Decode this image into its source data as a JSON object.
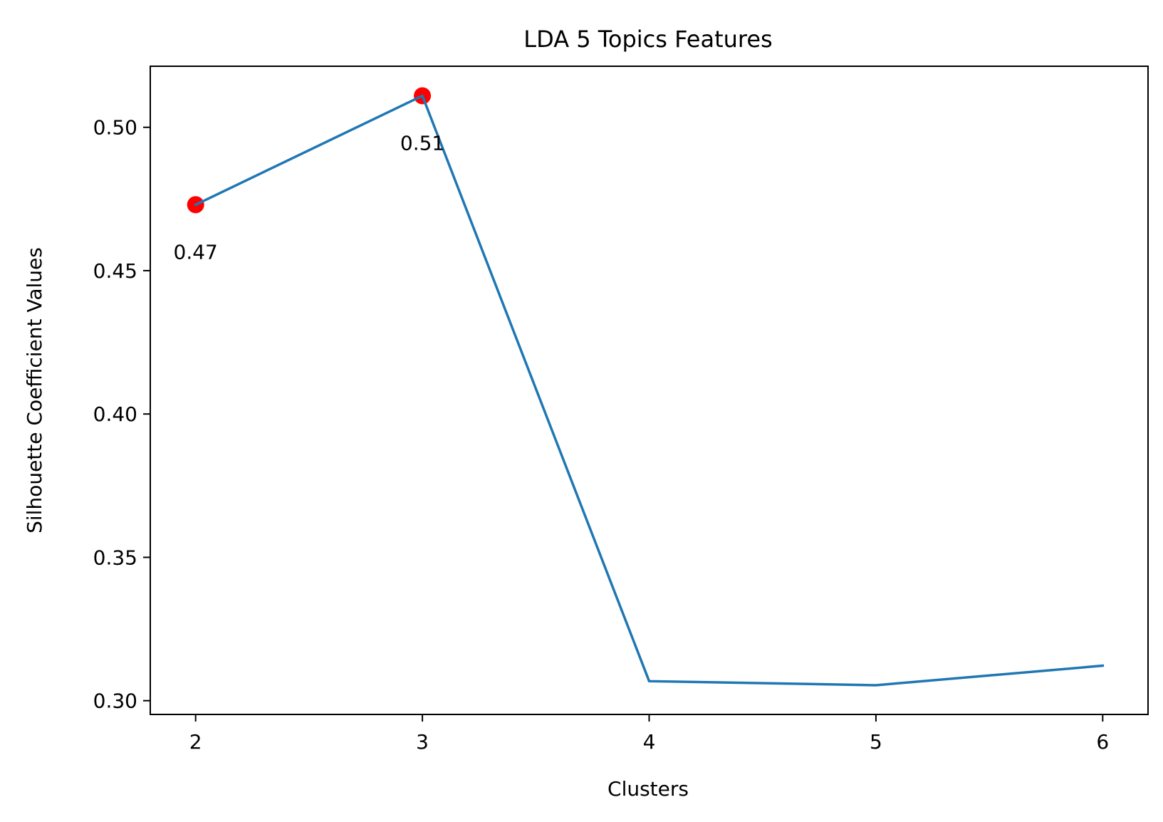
{
  "chart_data": {
    "type": "line",
    "title": "LDA 5 Topics Features",
    "xlabel": "Clusters",
    "ylabel": "Silhouette Coefficient Values",
    "x": [
      2,
      3,
      4,
      5,
      6
    ],
    "series": [
      {
        "values": [
          0.473,
          0.511,
          0.3068,
          0.3054,
          0.3122
        ],
        "color": "#1f77b4"
      }
    ],
    "highlighted_points": [
      {
        "x": 2,
        "y": 0.473,
        "label": "0.47"
      },
      {
        "x": 3,
        "y": 0.511,
        "label": "0.51"
      }
    ],
    "highlight_color": "#ff0000",
    "xlim": [
      1.8,
      6.2
    ],
    "ylim": [
      0.2952,
      0.5213
    ],
    "xticks": [
      {
        "value": 2,
        "label": "2"
      },
      {
        "value": 3,
        "label": "3"
      },
      {
        "value": 4,
        "label": "4"
      },
      {
        "value": 5,
        "label": "5"
      },
      {
        "value": 6,
        "label": "6"
      }
    ],
    "yticks": [
      {
        "value": 0.3,
        "label": "0.30"
      },
      {
        "value": 0.35,
        "label": "0.35"
      },
      {
        "value": 0.4,
        "label": "0.40"
      },
      {
        "value": 0.45,
        "label": "0.45"
      },
      {
        "value": 0.5,
        "label": "0.50"
      }
    ],
    "grid": false,
    "legend": "none"
  }
}
